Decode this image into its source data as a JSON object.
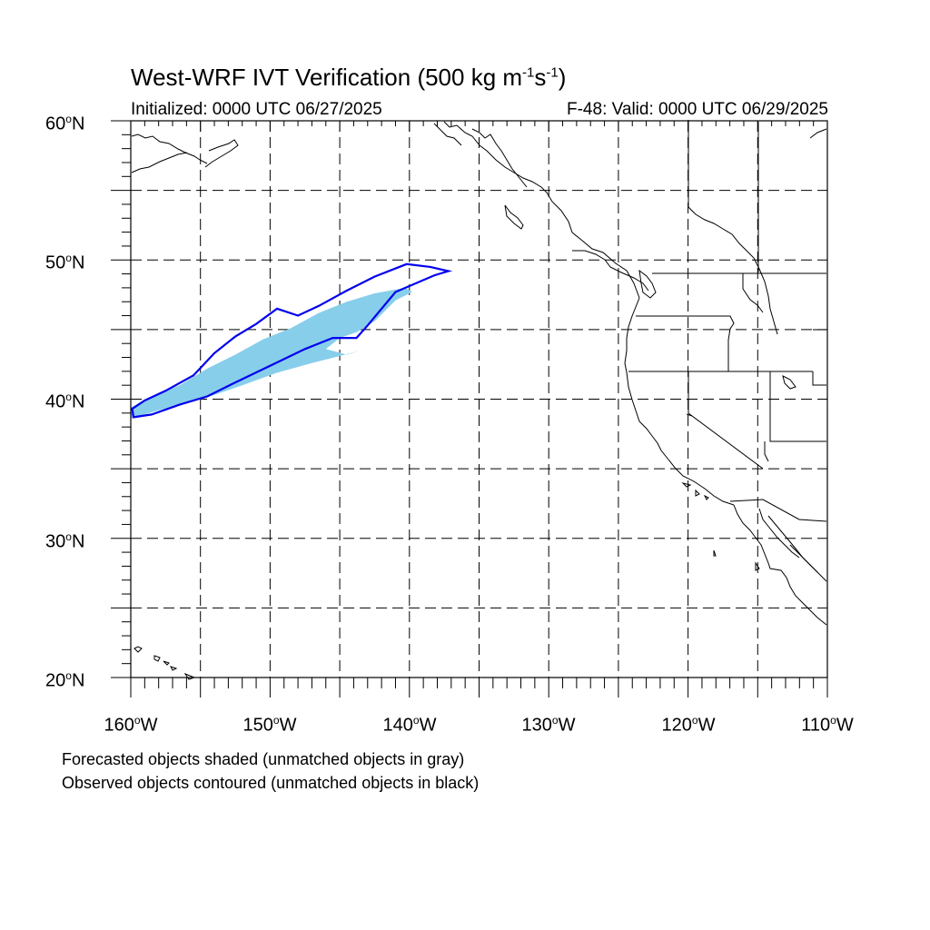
{
  "title": {
    "main": "West-WRF IVT Verification (500 kg m",
    "exp1": "-1",
    "mid": "s",
    "exp2": "-1",
    "end": ")"
  },
  "initialized": "Initialized: 0000 UTC 06/27/2025",
  "valid": "F-48: Valid: 0000 UTC 06/29/2025",
  "lat_labels": [
    {
      "num": "60",
      "deg": "o",
      "dir": "N"
    },
    {
      "num": "50",
      "deg": "o",
      "dir": "N"
    },
    {
      "num": "40",
      "deg": "o",
      "dir": "N"
    },
    {
      "num": "30",
      "deg": "o",
      "dir": "N"
    },
    {
      "num": "20",
      "deg": "o",
      "dir": "N"
    }
  ],
  "lon_labels": [
    {
      "num": "160",
      "deg": "o",
      "dir": "W"
    },
    {
      "num": "150",
      "deg": "o",
      "dir": "W"
    },
    {
      "num": "140",
      "deg": "o",
      "dir": "W"
    },
    {
      "num": "130",
      "deg": "o",
      "dir": "W"
    },
    {
      "num": "120",
      "deg": "o",
      "dir": "W"
    },
    {
      "num": "110",
      "deg": "o",
      "dir": "W"
    }
  ],
  "notes": {
    "line1": "Forecasted objects shaded (unmatched objects in gray)",
    "line2": "Observed objects contoured (unmatched objects in black)"
  },
  "colors": {
    "forecast_fill": "#87ceeb",
    "observed_contour": "#0000ee",
    "coastline": "#000000",
    "grid": "#000000"
  },
  "map": {
    "lon_range": [
      -160,
      -110
    ],
    "lat_range": [
      20,
      60
    ],
    "forecast_object": [
      [
        -160,
        39.4
      ],
      [
        -158.5,
        40.2
      ],
      [
        -156.5,
        41.0
      ],
      [
        -154.5,
        42.2
      ],
      [
        -152.5,
        43.2
      ],
      [
        -150.5,
        44.3
      ],
      [
        -148.5,
        45.1
      ],
      [
        -146.5,
        46.2
      ],
      [
        -144.5,
        47.0
      ],
      [
        -142.5,
        47.6
      ],
      [
        -140.3,
        48.0
      ],
      [
        -139.8,
        47.7
      ],
      [
        -141,
        47.1
      ],
      [
        -142.5,
        45.6
      ],
      [
        -143.8,
        44.8
      ],
      [
        -145,
        44.4
      ],
      [
        -146,
        43.6
      ],
      [
        -144.5,
        43.2
      ],
      [
        -143.5,
        43.5
      ],
      [
        -145,
        43.1
      ],
      [
        -147,
        42.6
      ],
      [
        -149.5,
        41.9
      ],
      [
        -152,
        41.0
      ],
      [
        -154,
        40.3
      ],
      [
        -156,
        39.7
      ],
      [
        -158,
        39.2
      ],
      [
        -160,
        38.6
      ]
    ],
    "observed_object": [
      [
        -159.8,
        38.7
      ],
      [
        -159.9,
        39.3
      ],
      [
        -159.0,
        39.9
      ],
      [
        -157.5,
        40.6
      ],
      [
        -155.5,
        41.7
      ],
      [
        -154.0,
        43.3
      ],
      [
        -152.5,
        44.5
      ],
      [
        -151.0,
        45.4
      ],
      [
        -149.5,
        46.5
      ],
      [
        -148.0,
        46.0
      ],
      [
        -146.5,
        46.7
      ],
      [
        -144.5,
        47.8
      ],
      [
        -142.5,
        48.8
      ],
      [
        -140.2,
        49.7
      ],
      [
        -138.5,
        49.5
      ],
      [
        -137.2,
        49.2
      ],
      [
        -138.2,
        48.9
      ],
      [
        -141.0,
        47.7
      ],
      [
        -143.0,
        45.3
      ],
      [
        -143.8,
        44.4
      ],
      [
        -145.5,
        44.4
      ],
      [
        -147.5,
        43.6
      ],
      [
        -150.0,
        42.4
      ],
      [
        -152.5,
        41.2
      ],
      [
        -154.5,
        40.2
      ],
      [
        -156.5,
        39.6
      ],
      [
        -158.5,
        38.9
      ],
      [
        -159.8,
        38.7
      ]
    ]
  }
}
